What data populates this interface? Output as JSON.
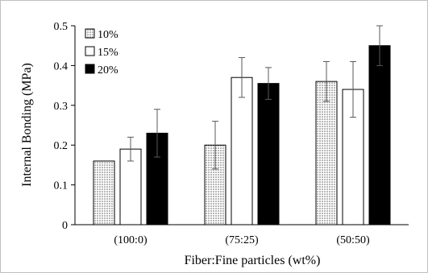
{
  "chart_data": {
    "type": "bar",
    "title": "",
    "xlabel": "Fiber:Fine particles (wt%)",
    "ylabel": "Internal Bonding (MPa)",
    "ylim": [
      0,
      0.5
    ],
    "yticks": [
      "0",
      "0.1",
      "0.2",
      "0.3",
      "0.4",
      "0.5"
    ],
    "categories": [
      "(100:0)",
      "(75:25)",
      "(50:50)"
    ],
    "legend_position": "top-left",
    "series": [
      {
        "name": "10%",
        "fill": "dotted",
        "color": "#bfbfbf",
        "values": [
          0.16,
          0.2,
          0.36
        ],
        "errors": [
          0,
          0.06,
          0.05
        ]
      },
      {
        "name": "15%",
        "fill": "white",
        "color": "#ffffff",
        "values": [
          0.19,
          0.37,
          0.34
        ],
        "errors": [
          0.03,
          0.05,
          0.07
        ]
      },
      {
        "name": "20%",
        "fill": "black",
        "color": "#000000",
        "values": [
          0.23,
          0.355,
          0.45
        ],
        "errors": [
          0.06,
          0.04,
          0.05
        ]
      }
    ]
  }
}
